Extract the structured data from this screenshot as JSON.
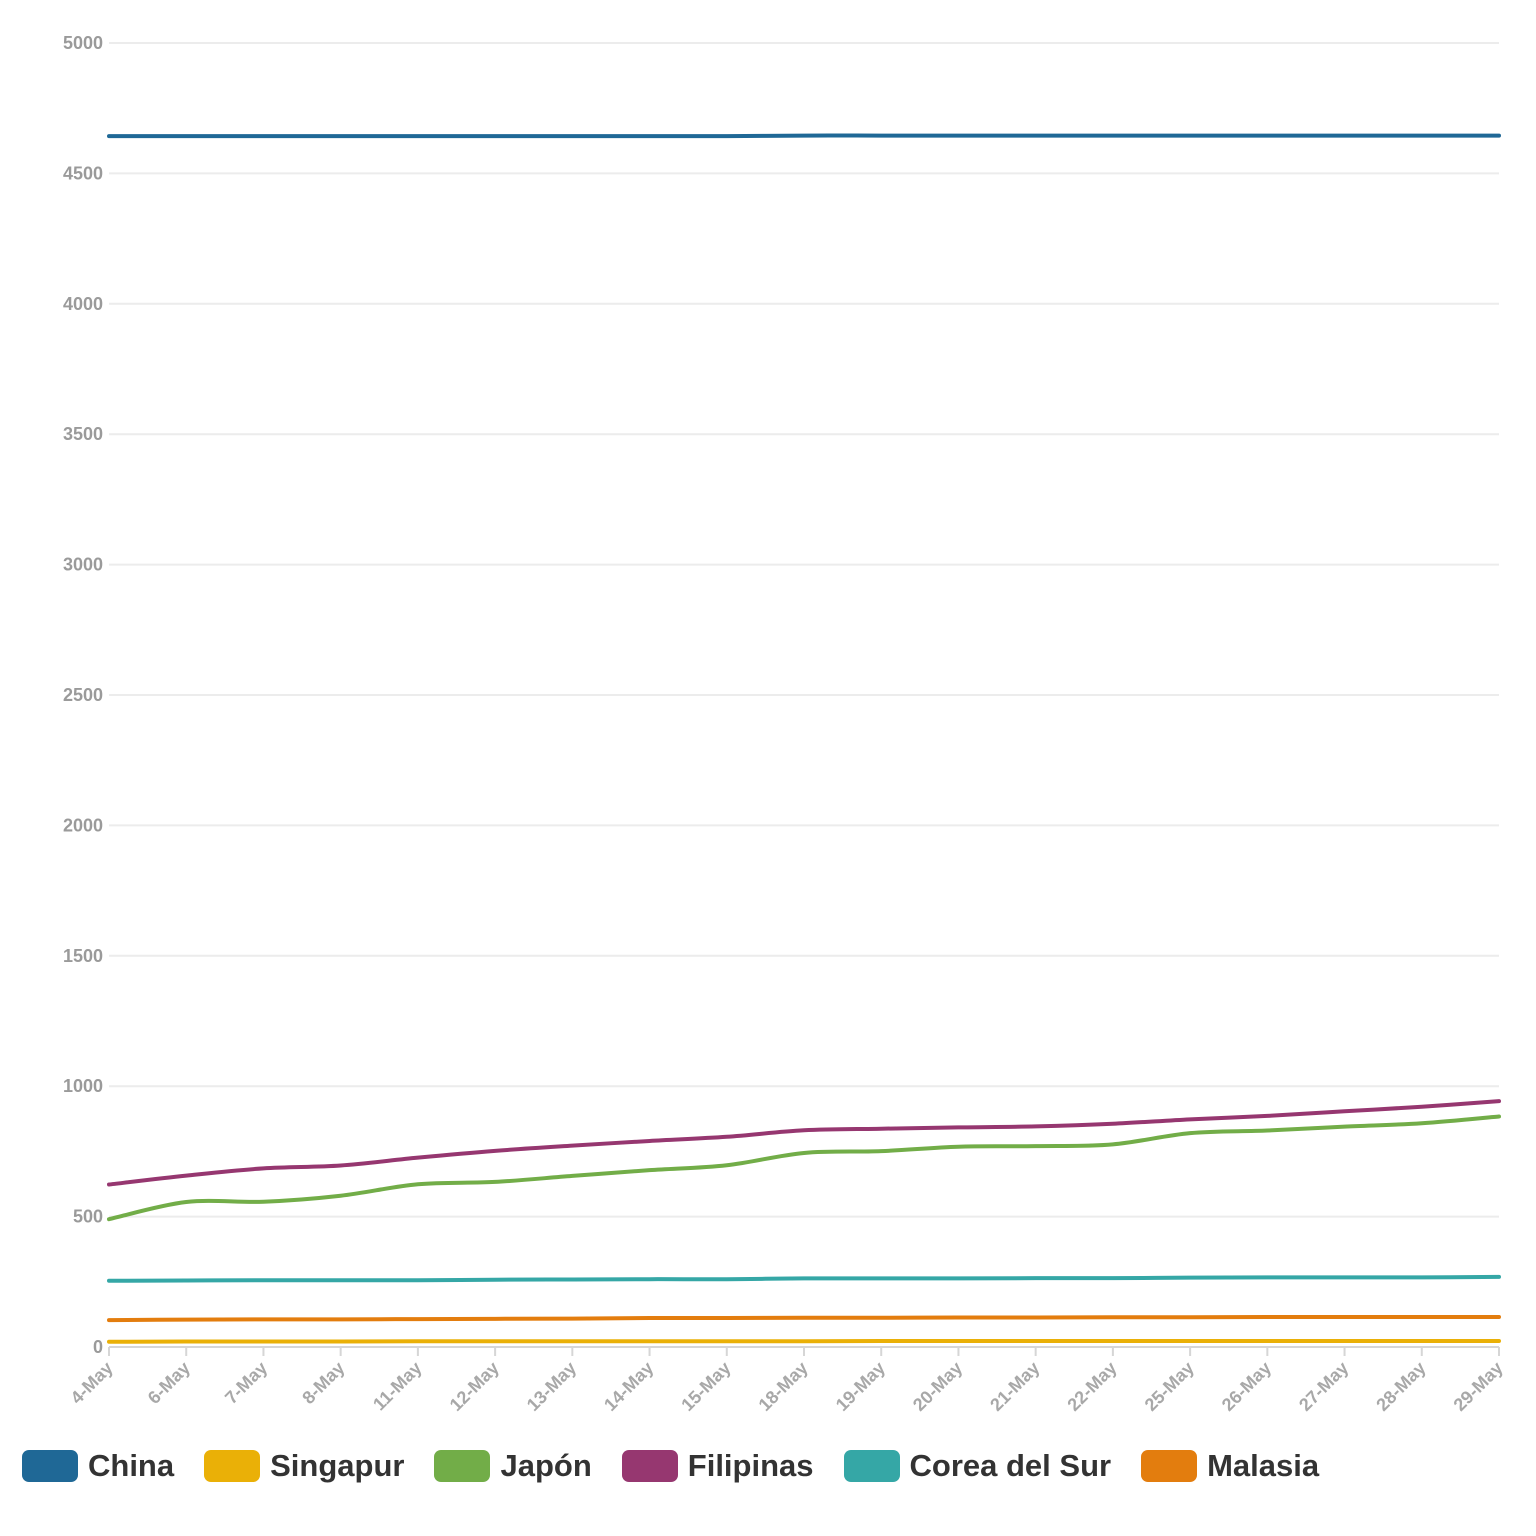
{
  "chart_data": {
    "type": "line",
    "title": "",
    "xlabel": "",
    "ylabel": "",
    "ylim": [
      0,
      5000
    ],
    "yticks": [
      0,
      500,
      1000,
      1500,
      2000,
      2500,
      3000,
      3500,
      4000,
      4500,
      5000
    ],
    "grid": true,
    "legend_position": "bottom-left",
    "x": [
      "4-May",
      "6-May",
      "7-May",
      "8-May",
      "11-May",
      "12-May",
      "13-May",
      "14-May",
      "15-May",
      "18-May",
      "19-May",
      "20-May",
      "21-May",
      "22-May",
      "25-May",
      "26-May",
      "27-May",
      "28-May",
      "29-May"
    ],
    "series": [
      {
        "name": "China",
        "color": "#1f6896",
        "values": [
          4643,
          4643,
          4643,
          4643,
          4643,
          4643,
          4643,
          4643,
          4643,
          4645,
          4645,
          4645,
          4645,
          4645,
          4645,
          4645,
          4645,
          4645,
          4645
        ]
      },
      {
        "name": "Singapur",
        "color": "#eab007",
        "values": [
          20,
          21,
          21,
          21,
          22,
          22,
          22,
          22,
          22,
          22,
          23,
          23,
          23,
          23,
          23,
          23,
          23,
          23,
          23
        ]
      },
      {
        "name": "Japón",
        "color": "#72ad48",
        "values": [
          490,
          556,
          557,
          580,
          624,
          633,
          656,
          678,
          697,
          744,
          751,
          768,
          770,
          777,
          820,
          830,
          845,
          858,
          884
        ]
      },
      {
        "name": "Filipinas",
        "color": "#963770",
        "values": [
          623,
          657,
          685,
          696,
          726,
          752,
          772,
          790,
          806,
          831,
          837,
          842,
          846,
          856,
          873,
          886,
          904,
          921,
          943
        ]
      },
      {
        "name": "Corea del Sur",
        "color": "#35a7a6",
        "values": [
          254,
          255,
          256,
          256,
          256,
          258,
          259,
          260,
          260,
          263,
          263,
          263,
          264,
          264,
          266,
          267,
          267,
          267,
          269
        ]
      },
      {
        "name": "Malasia",
        "color": "#e37d0e",
        "values": [
          103,
          105,
          106,
          106,
          107,
          108,
          109,
          111,
          111,
          112,
          112,
          113,
          113,
          114,
          114,
          115,
          115,
          115,
          115
        ]
      }
    ]
  }
}
